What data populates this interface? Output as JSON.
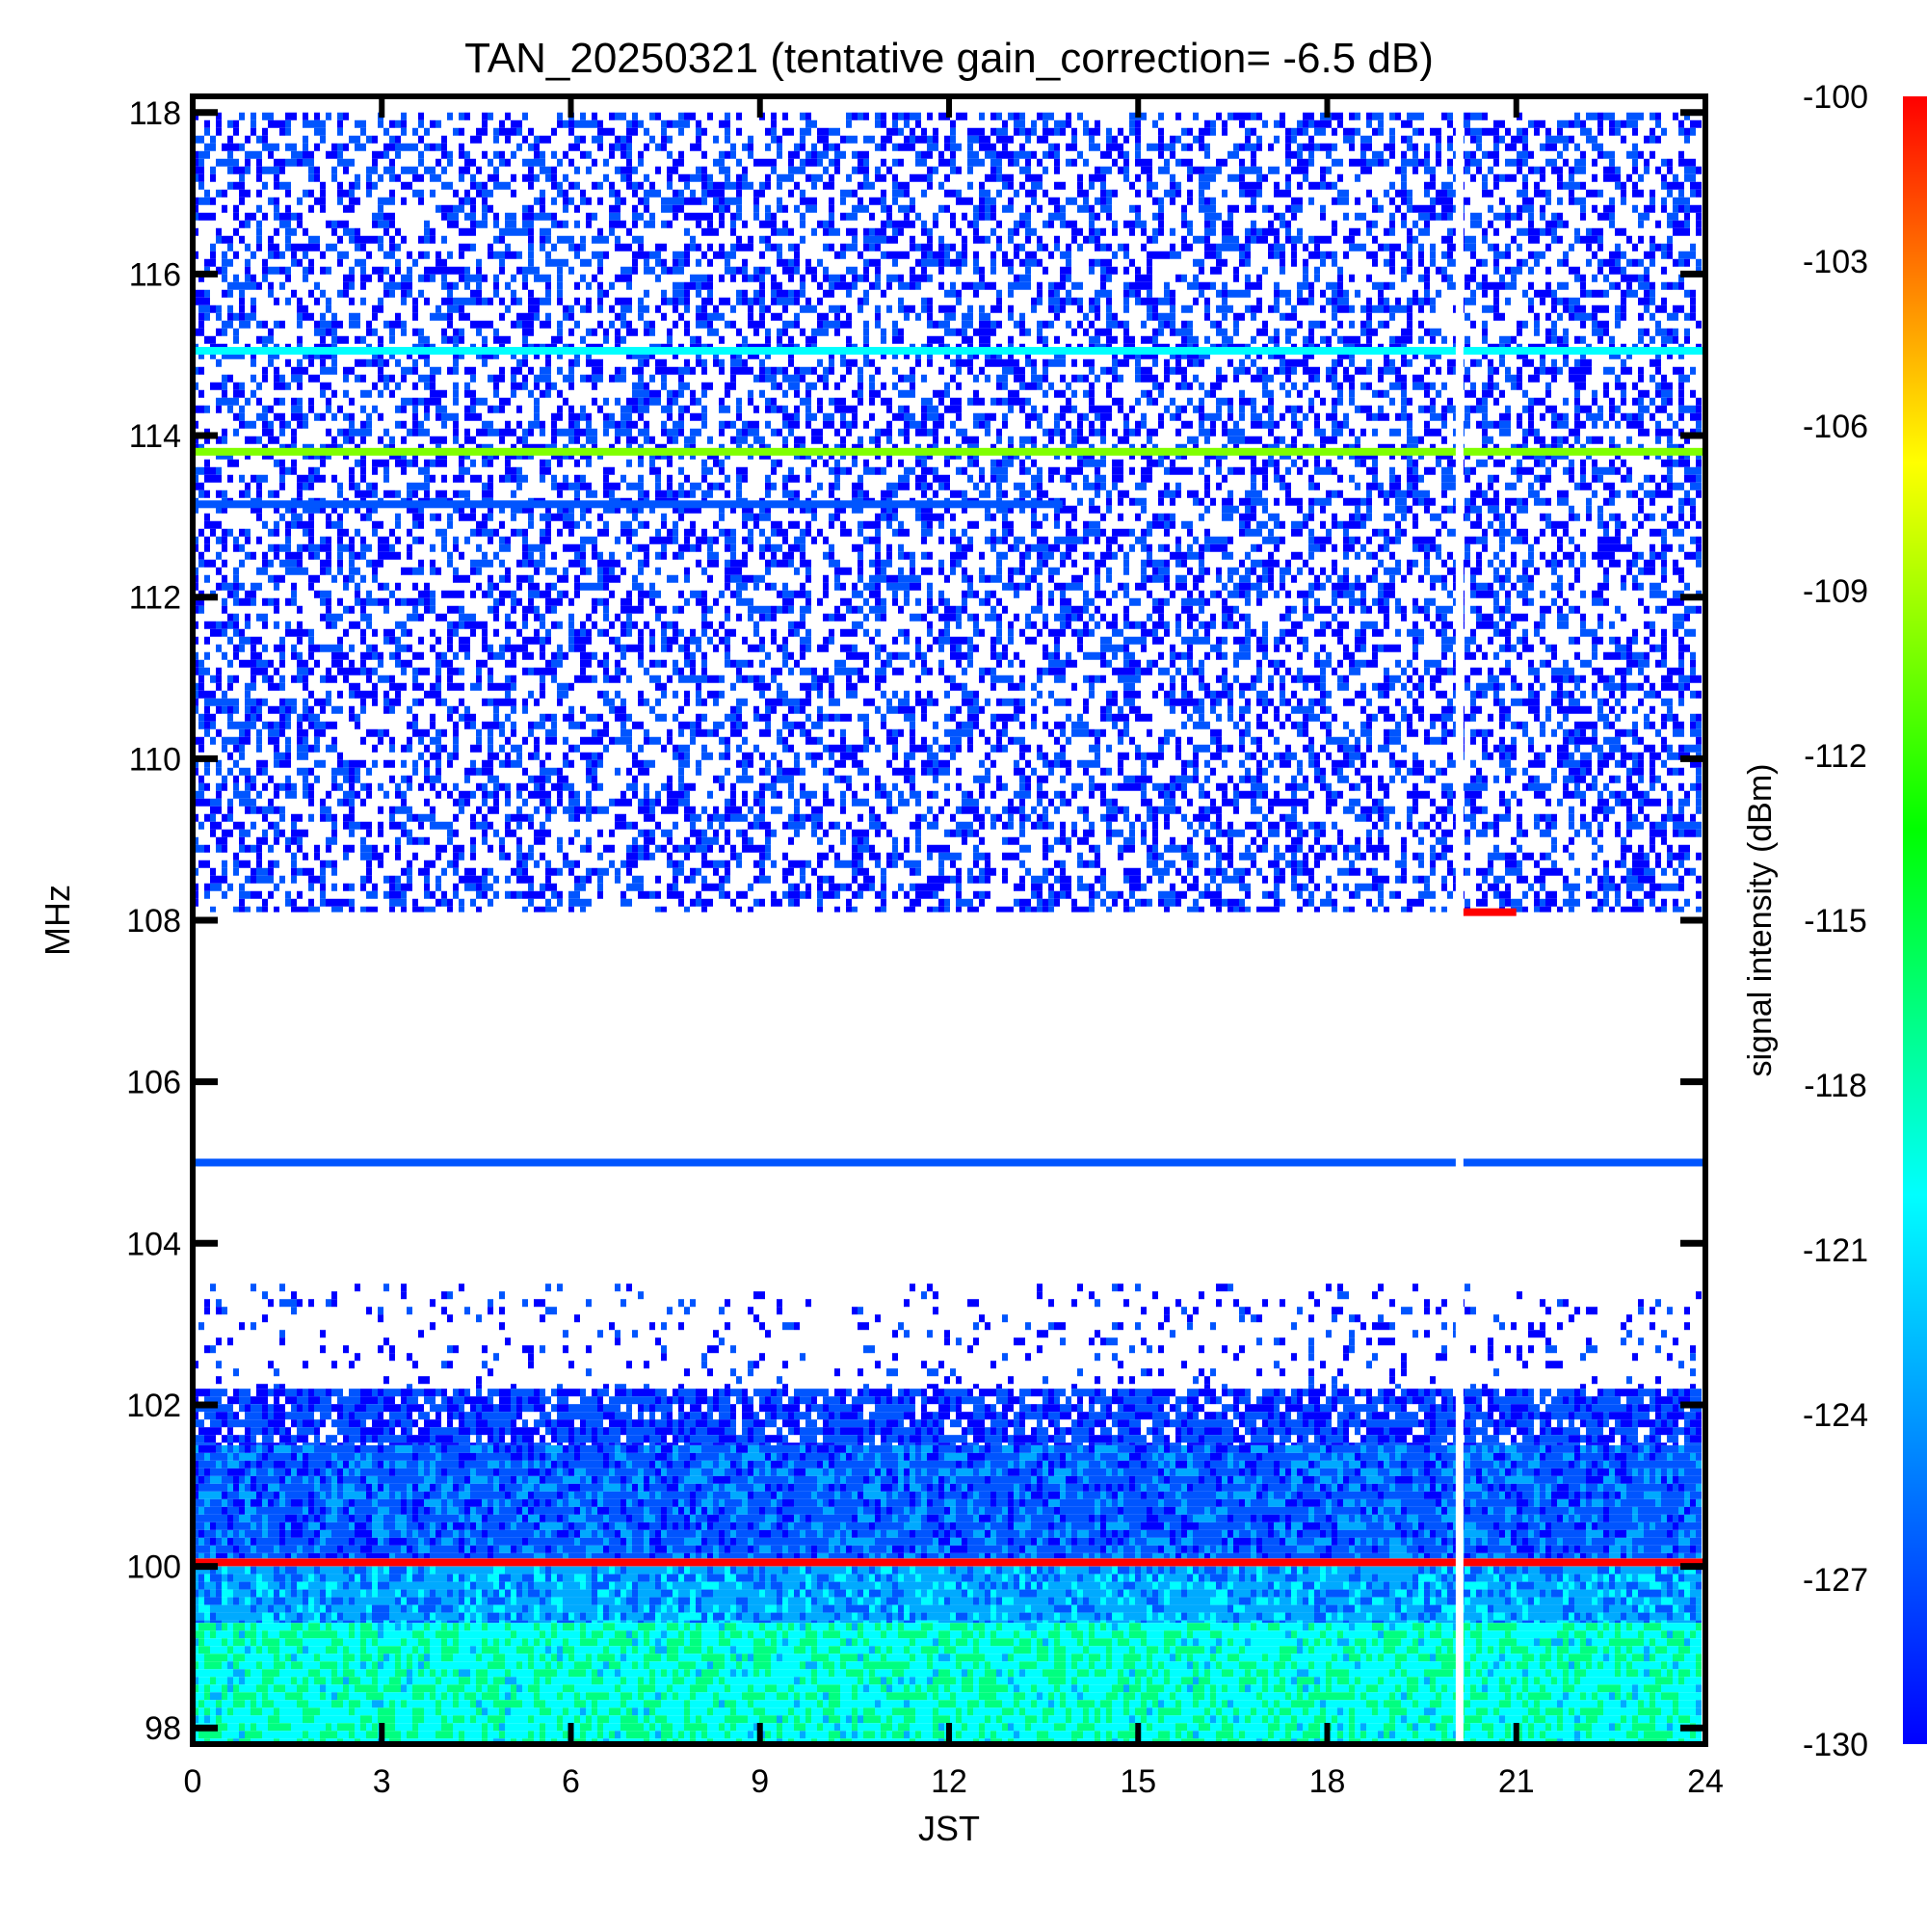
{
  "chart_data": {
    "type": "heatmap",
    "title": "TAN_20250321 (tentative gain_correction= -6.5 dB)",
    "xlabel": "JST",
    "ylabel": "MHz",
    "colorbar_label": "signal intensity (dBm)",
    "xlim": [
      0,
      24
    ],
    "ylim": [
      97.8,
      118.2
    ],
    "x_ticks": [
      0,
      3,
      6,
      9,
      12,
      15,
      18,
      21,
      24
    ],
    "y_ticks": [
      98,
      100,
      102,
      104,
      106,
      108,
      110,
      112,
      114,
      116,
      118
    ],
    "color_range": [
      -130,
      -100
    ],
    "colorbar_ticks": [
      -100,
      -103,
      -106,
      -109,
      -112,
      -115,
      -118,
      -121,
      -124,
      -127,
      -130
    ],
    "colormap": [
      "#0000ff",
      "#0055ff",
      "#00aaff",
      "#00ffff",
      "#00ff80",
      "#00ff00",
      "#80ff00",
      "#ffff00",
      "#ff8000",
      "#ff0000"
    ],
    "data_gap": {
      "x": 20.1,
      "note": "no data"
    },
    "noise_regions": [
      {
        "freq_range": [
          108.1,
          118.0
        ],
        "level_dbm": -128.5,
        "density": 0.45
      },
      {
        "freq_range": [
          102.2,
          103.5
        ],
        "level_dbm": -129.0,
        "density": 0.12
      },
      {
        "freq_range": [
          101.5,
          102.2
        ],
        "level_dbm": -128.0,
        "density": 0.85
      },
      {
        "freq_range": [
          100.1,
          101.5
        ],
        "level_dbm": -126.5,
        "density": 1.0
      },
      {
        "freq_range": [
          99.3,
          100.0
        ],
        "level_dbm": -123.5,
        "density": 1.0
      },
      {
        "freq_range": [
          97.8,
          99.3
        ],
        "level_dbm": -119.0,
        "density": 1.0
      }
    ],
    "stations": [
      {
        "freq_mhz": 100.05,
        "level_dbm": -100.0,
        "time_range": [
          0,
          24
        ]
      },
      {
        "freq_mhz": 105.0,
        "level_dbm": -126.0,
        "time_range": [
          0,
          24
        ]
      },
      {
        "freq_mhz": 113.8,
        "level_dbm": -110.5,
        "time_range": [
          0,
          24
        ]
      },
      {
        "freq_mhz": 115.05,
        "level_dbm": -121.0,
        "time_range": [
          0,
          24
        ]
      },
      {
        "freq_mhz": 113.15,
        "level_dbm": -127.5,
        "time_range": [
          0,
          13.8
        ]
      },
      {
        "freq_mhz": 108.1,
        "level_dbm": -100.0,
        "time_range": [
          20.1,
          21.0
        ]
      }
    ]
  }
}
